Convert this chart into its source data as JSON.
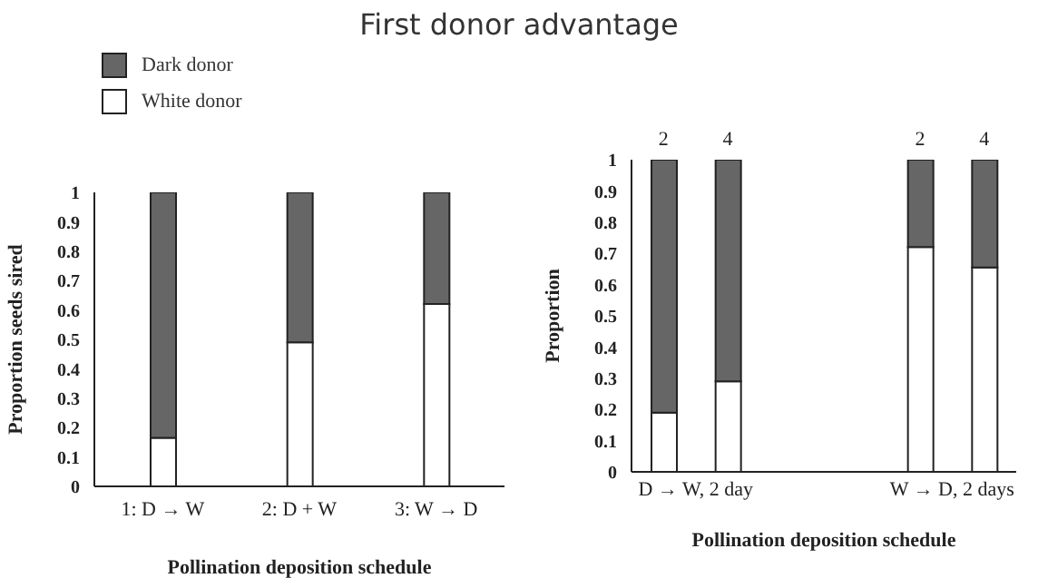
{
  "chart_data": [
    {
      "type": "bar",
      "title": "First donor advantage",
      "stacked": true,
      "categories": [
        "1: D → W",
        "2: D + W",
        "3: W → D"
      ],
      "series": [
        {
          "name": "White donor",
          "color": "#ffffff",
          "values": [
            0.165,
            0.49,
            0.62
          ]
        },
        {
          "name": "Dark donor",
          "color": "#666666",
          "values": [
            0.835,
            0.51,
            0.38
          ]
        }
      ],
      "xlabel": "Pollination deposition schedule",
      "ylabel": "Proportion seeds sired",
      "ylim": [
        0,
        1
      ],
      "yticks": [
        0,
        0.1,
        0.2,
        0.3,
        0.4,
        0.5,
        0.6,
        0.7,
        0.8,
        0.9,
        1
      ],
      "legend": "top left",
      "grid": false
    },
    {
      "type": "bar",
      "stacked": true,
      "categories": [
        "2",
        "4",
        null,
        null,
        "2",
        "4"
      ],
      "series": [
        {
          "color": "#ffffff",
          "values": [
            0.19,
            0.29,
            null,
            null,
            0.72,
            0.655
          ]
        },
        {
          "color": "#666666",
          "values": [
            0.81,
            0.71,
            null,
            null,
            0.28,
            0.345
          ]
        }
      ],
      "annotations": [
        "D → W, 2 day",
        "W → D, 2 days"
      ],
      "xlabel": "Pollination deposition schedule",
      "ylabel": "Proportion",
      "ylim": [
        0,
        1
      ],
      "yticks": [
        0,
        0.1,
        0.2,
        0.3,
        0.4,
        0.5,
        0.6,
        0.7,
        0.8,
        0.9,
        1
      ],
      "legend": false,
      "grid": false
    }
  ]
}
